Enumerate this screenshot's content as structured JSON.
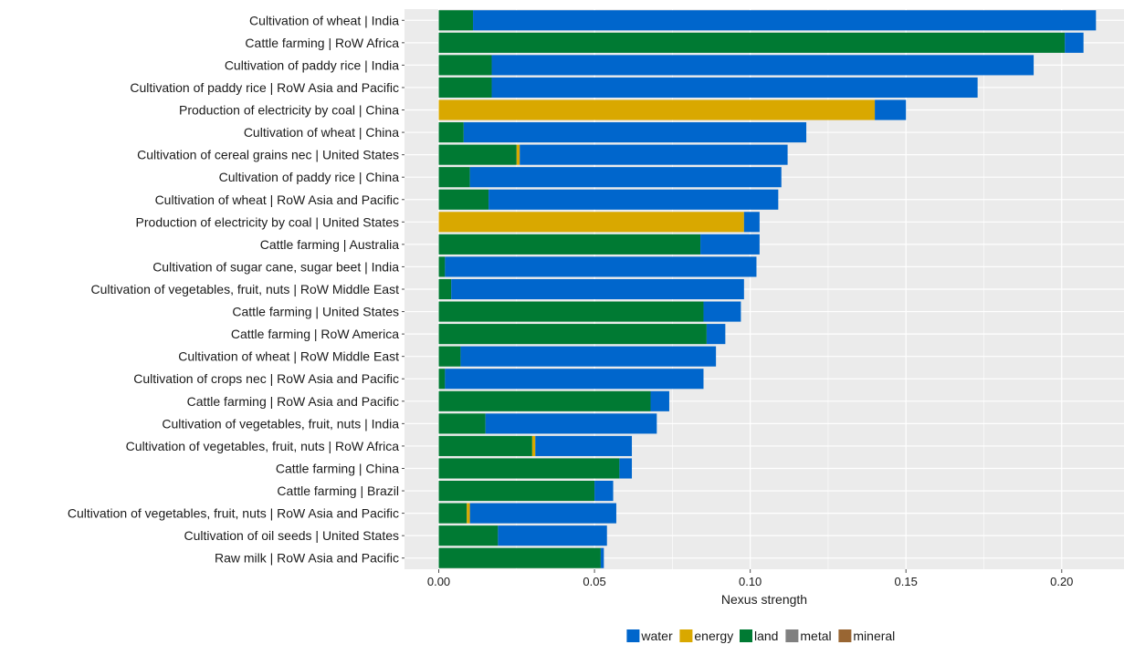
{
  "chart_data": {
    "type": "bar",
    "orientation": "horizontal",
    "stacked": true,
    "title": "",
    "xlabel": "Nexus strength",
    "ylabel": "",
    "xlim": [
      -0.011,
      0.22
    ],
    "xticks": [
      0.0,
      0.05,
      0.1,
      0.15,
      0.2
    ],
    "xtick_labels": [
      "0.00",
      "0.05",
      "0.10",
      "0.15",
      "0.20"
    ],
    "grid": true,
    "legend_position": "bottom",
    "colors": {
      "water": "#0066cc",
      "energy": "#d9a800",
      "land": "#007a33",
      "metal": "#808080",
      "mineral": "#996633",
      "panel": "#ebebeb",
      "grid": "#ffffff"
    },
    "categories": [
      "Cultivation of wheat  |  India",
      "Cattle farming  |  RoW Africa",
      "Cultivation of paddy rice  |  India",
      "Cultivation of paddy rice  |  RoW Asia and Pacific",
      "Production of electricity by coal  |  China",
      "Cultivation of wheat  |  China",
      "Cultivation of cereal grains nec  |  United States",
      "Cultivation of paddy rice  |  China",
      "Cultivation of wheat  |  RoW Asia and Pacific",
      "Production of electricity by coal  |  United States",
      "Cattle farming  |  Australia",
      "Cultivation of sugar cane, sugar beet  |  India",
      "Cultivation of vegetables, fruit, nuts  |  RoW Middle East",
      "Cattle farming  |  United States",
      "Cattle farming  |  RoW America",
      "Cultivation of wheat  |  RoW Middle East",
      "Cultivation of crops nec  |  RoW Asia and Pacific",
      "Cattle farming  |  RoW Asia and Pacific",
      "Cultivation of vegetables, fruit, nuts  |  India",
      "Cultivation of vegetables, fruit, nuts  |  RoW Africa",
      "Cattle farming  |  China",
      "Cattle farming  |  Brazil",
      "Cultivation of vegetables, fruit, nuts  |  RoW Asia and Pacific",
      "Cultivation of oil seeds  |  United States",
      "Raw milk  |  RoW Asia and Pacific"
    ],
    "stack_order": [
      "land",
      "energy",
      "metal",
      "mineral",
      "water"
    ],
    "series": [
      {
        "name": "water",
        "values": [
          0.2,
          0.006,
          0.174,
          0.156,
          0.01,
          0.11,
          0.086,
          0.1,
          0.093,
          0.005,
          0.019,
          0.1,
          0.094,
          0.012,
          0.006,
          0.082,
          0.083,
          0.006,
          0.055,
          0.031,
          0.004,
          0.006,
          0.047,
          0.035,
          0.001
        ]
      },
      {
        "name": "energy",
        "values": [
          0,
          0,
          0,
          0,
          0.14,
          0,
          0.001,
          0,
          0,
          0.098,
          0,
          0,
          0,
          0,
          0,
          0,
          0,
          0,
          0,
          0.001,
          0,
          0,
          0.001,
          0,
          0
        ]
      },
      {
        "name": "land",
        "values": [
          0.011,
          0.201,
          0.017,
          0.017,
          0,
          0.008,
          0.025,
          0.01,
          0.016,
          0,
          0.084,
          0.002,
          0.004,
          0.085,
          0.086,
          0.007,
          0.002,
          0.068,
          0.015,
          0.03,
          0.058,
          0.05,
          0.009,
          0.019,
          0.052
        ]
      },
      {
        "name": "metal",
        "values": [
          0,
          0,
          0,
          0,
          0,
          0,
          0,
          0,
          0,
          0,
          0,
          0,
          0,
          0,
          0,
          0,
          0,
          0,
          0,
          0,
          0,
          0,
          0,
          0,
          0
        ]
      },
      {
        "name": "mineral",
        "values": [
          0,
          0,
          0,
          0,
          0,
          0,
          0,
          0,
          0,
          0,
          0,
          0,
          0,
          0,
          0,
          0,
          0,
          0,
          0,
          0,
          0,
          0,
          0,
          0,
          0
        ]
      }
    ],
    "legend": [
      {
        "key": "water",
        "label": "water"
      },
      {
        "key": "energy",
        "label": "energy"
      },
      {
        "key": "land",
        "label": "land"
      },
      {
        "key": "metal",
        "label": "metal"
      },
      {
        "key": "mineral",
        "label": "mineral"
      }
    ]
  }
}
